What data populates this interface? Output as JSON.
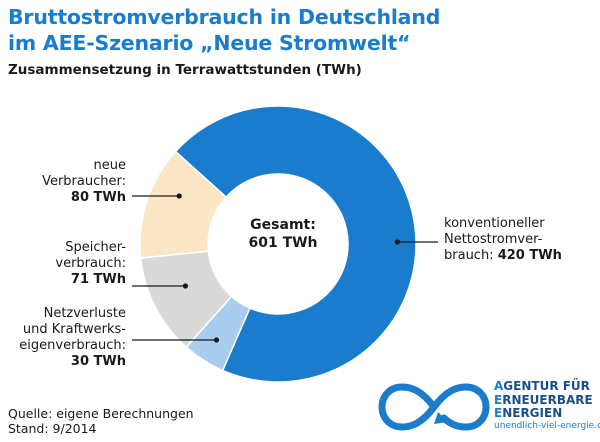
{
  "title_line1": "Bruttostromverbrauch in Deutschland",
  "title_line2": "im AEE-Szenario „Neue Stromwelt“",
  "subtitle": "Zusammensetzung in Terrawattstunden (TWh)",
  "center": {
    "line1": "Gesamt:",
    "line2": "601 TWh"
  },
  "labels": {
    "konventionell": [
      "konventioneller",
      "Nettostromver-",
      "brauch: ",
      "420 TWh"
    ],
    "neue": [
      "neue",
      "Verbraucher:",
      "80 TWh"
    ],
    "speicher": [
      "Speicher-",
      "verbrauch:",
      "71 TWh"
    ],
    "netz": [
      "Netzverluste",
      "und Kraftwerks-",
      "eigenverbrauch:",
      "30 TWh"
    ]
  },
  "source": {
    "line1": "Quelle: eigene Berechnungen",
    "line2": "Stand: 9/2014"
  },
  "logo": {
    "line1_cap": "A",
    "line1_rest": "GENTUR FÜR",
    "line2_cap": "E",
    "line2_rest": "RNEUERBARE",
    "line3_cap": "E",
    "line3_rest": "NERGIEN",
    "url": "unendlich-viel-energie.de",
    "icon": "infinity-icon"
  },
  "colors": {
    "blue": "#1a7ccc",
    "peach": "#fbe7c6",
    "grey": "#d9d9d9",
    "lightblue": "#a9cdef"
  },
  "chart_data": {
    "type": "pie",
    "title": "Bruttostromverbrauch in Deutschland im AEE-Szenario „Neue Stromwelt“",
    "subtitle": "Zusammensetzung in Terrawattstunden (TWh)",
    "unit": "TWh",
    "total": 601,
    "categories": [
      "konventioneller Nettostromverbrauch",
      "Netzverluste und Kraftwerkseigenverbrauch",
      "Speicherverbrauch",
      "neue Verbraucher"
    ],
    "values": [
      420,
      30,
      71,
      80
    ],
    "colors": [
      "#1a7ccc",
      "#a9cdef",
      "#d9d9d9",
      "#fbe7c6"
    ],
    "donut": true
  }
}
